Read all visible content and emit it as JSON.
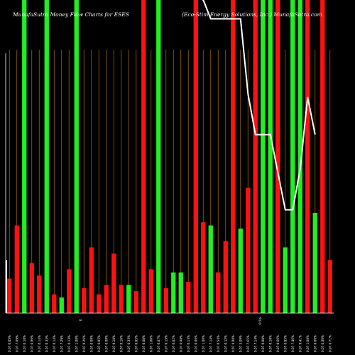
{
  "chart_data": {
    "type": "bar",
    "title_left": "MunafaSutra Money Flow Charts for ESES",
    "title_right": "(Eco-Stim Energy Solutions, Inc.) MunafaSutra.com",
    "colors": {
      "background": "#000000",
      "up": "#22ee22",
      "down": "#ff1111",
      "grid": "#a0621a",
      "price_line": "#ffffff",
      "axis": "#ffffff"
    },
    "ylim": [
      0,
      100
    ],
    "x_labels": [
      "0.07 0.05%",
      "0.07 7.09%",
      "0.07 0.10%",
      "0.07 0.96%",
      "0.07 0.14%",
      "0.07 0.33%",
      "0.07 0.14%",
      "0.07 7.29%",
      "0.07 0.13%",
      "0.07 1.00%",
      "0.07 0.26%",
      "0.07 0.09%",
      "0.07 0.05%",
      "0.07 0.09%",
      "0.07 0.10%",
      "0.07 0.16%",
      "0.07 0.33%",
      "0.07 0.05%",
      "0.07 0.08%",
      "0.07 1.00%",
      "0.07 0.07%",
      "0.07 0.13%",
      "0.07 0.02%",
      "0.07 0.08%",
      "0.07 0.13%",
      "0.07 0.06%",
      "0.07 1.00%",
      "0.07 7.14%",
      "0.07 0.54%",
      "0.07 0.12%",
      "0.07 4.00%",
      "0.07 5.09%",
      "0.07 7.65%",
      "0.07 7.14%",
      "0.07 0.08%",
      "0.07 0.10%",
      "0.07 0.66%",
      "0.07 6.85%",
      "0.07 7.46%",
      "0.07 9.41%",
      "0.07 1.00%",
      "0.07 0.06%",
      "0.07 0.00%",
      "0.07 0.71%"
    ],
    "x_mid_marks": [
      "0",
      "0.5%"
    ],
    "series": [
      {
        "direction": [
          "down",
          "down",
          "up",
          "down",
          "down",
          "up",
          "down",
          "up",
          "down",
          "up",
          "down",
          "down",
          "down",
          "down",
          "down",
          "down",
          "up",
          "down",
          "down",
          "down",
          "up",
          "down",
          "up",
          "up",
          "down",
          "down",
          "down",
          "up",
          "down",
          "down",
          "down",
          "up",
          "down",
          "down",
          "up",
          "up",
          "down",
          "up",
          "up",
          "up",
          "down",
          "up",
          "down",
          "down"
        ],
        "values": [
          11,
          28,
          100,
          16,
          12,
          100,
          6,
          5,
          14,
          100,
          8,
          21,
          6,
          9,
          19,
          9,
          9,
          7,
          100,
          14,
          100,
          8,
          13,
          13,
          10,
          100,
          29,
          28,
          13,
          23,
          100,
          27,
          40,
          100,
          100,
          100,
          100,
          21,
          100,
          100,
          100,
          32,
          100,
          17
        ]
      },
      {
        "name": "",
        "type": "line",
        "values": [
          17,
          null,
          null,
          null,
          null,
          null,
          null,
          null,
          null,
          null,
          null,
          null,
          null,
          null,
          null,
          null,
          null,
          null,
          null,
          null,
          null,
          null,
          null,
          null,
          null,
          null,
          100,
          94,
          94,
          94,
          94,
          94,
          70,
          57,
          57,
          57,
          45,
          33,
          33,
          46,
          69,
          57,
          null,
          null
        ]
      }
    ]
  }
}
